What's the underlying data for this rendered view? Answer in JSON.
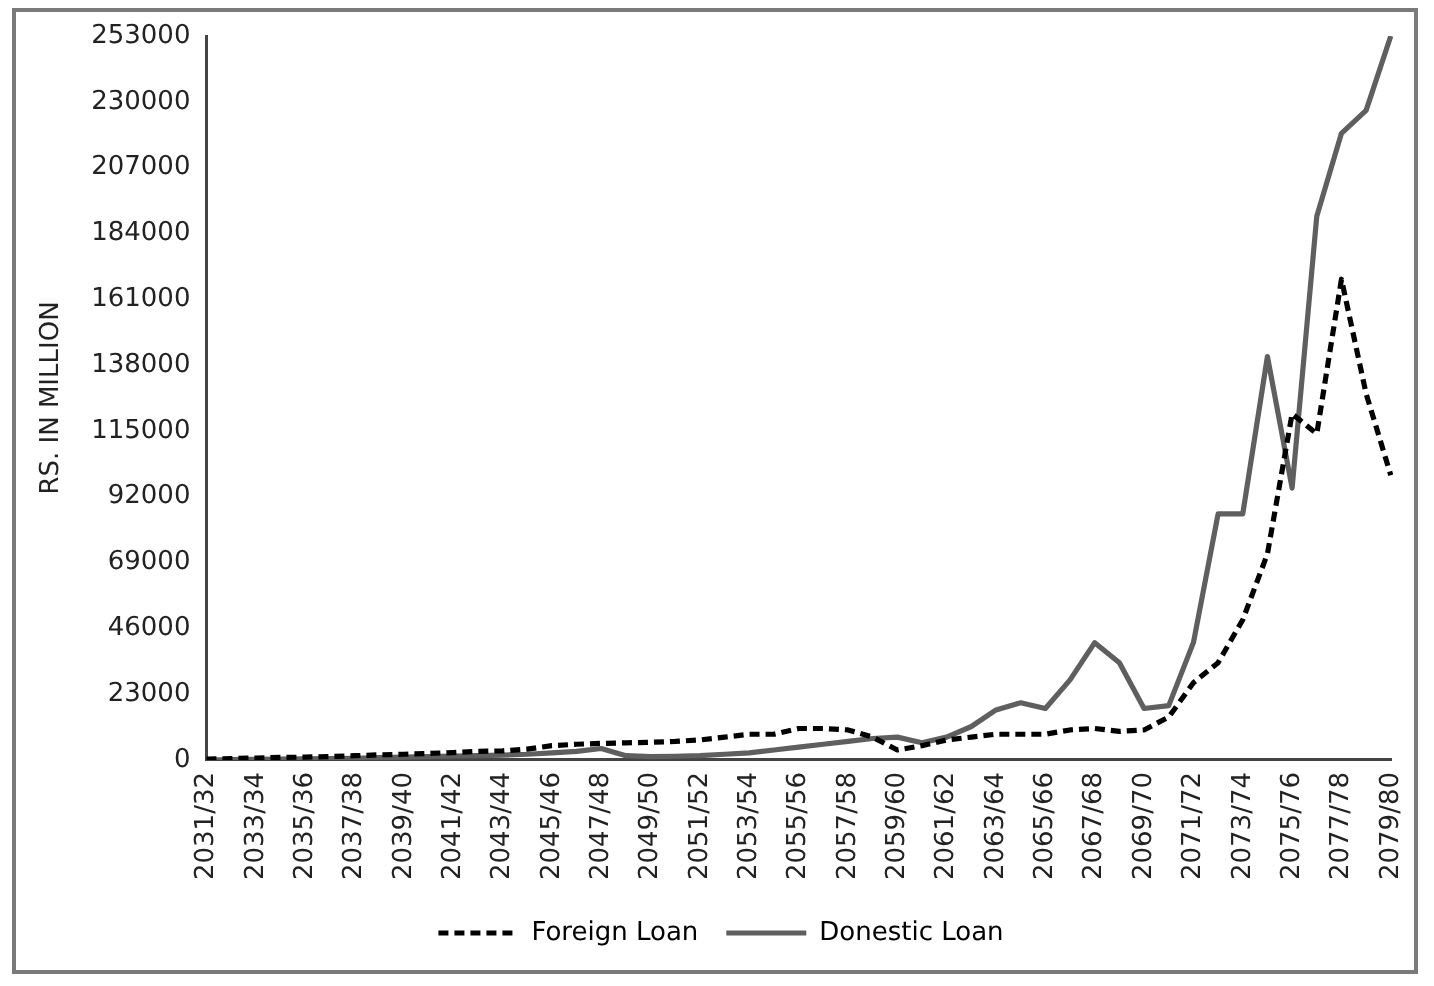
{
  "chart_data": {
    "type": "line",
    "ylabel": "RS. IN MILLION",
    "categories": [
      "2031/32",
      null,
      "2033/34",
      null,
      "2035/36",
      null,
      "2037/38",
      null,
      "2039/40",
      null,
      "2041/42",
      null,
      "2043/44",
      null,
      "2045/46",
      null,
      "2047/48",
      null,
      "2049/50",
      null,
      "2051/52",
      null,
      "2053/54",
      null,
      "2055/56",
      null,
      "2057/58",
      null,
      "2059/60",
      null,
      "2061/62",
      null,
      "2063/64",
      null,
      "2065/66",
      null,
      "2067/68",
      null,
      "2069/70",
      null,
      "2071/72",
      null,
      "2073/74",
      null,
      "2075/76",
      null,
      "2077/78",
      null,
      "2079/80"
    ],
    "series": [
      {
        "name": "Foreign Loan",
        "color": "#000000",
        "line_style": "dashed",
        "values": [
          300,
          500,
          700,
          900,
          1000,
          1200,
          1500,
          1800,
          2000,
          2300,
          2600,
          3000,
          3200,
          3800,
          5000,
          5500,
          5800,
          6000,
          6200,
          6500,
          7000,
          8000,
          9000,
          9000,
          11000,
          11000,
          10500,
          8000,
          3500,
          5000,
          7000,
          8000,
          9000,
          9000,
          9000,
          10500,
          11000,
          10000,
          10500,
          15000,
          27000,
          34000,
          49000,
          72000,
          121000,
          114000,
          168000,
          128000,
          99500
        ]
      },
      {
        "name": "Donestic Loan",
        "color": "#5f5f5f",
        "line_style": "solid",
        "values": [
          0,
          100,
          200,
          300,
          400,
          500,
          600,
          800,
          1000,
          1200,
          1400,
          1500,
          1700,
          2000,
          2500,
          3000,
          4000,
          1500,
          1200,
          1300,
          1500,
          2000,
          2500,
          3500,
          4500,
          5500,
          6500,
          7500,
          8000,
          6000,
          8000,
          11700,
          17500,
          20000,
          18000,
          28000,
          41000,
          34000,
          18000,
          19000,
          41000,
          86000,
          86000,
          141000,
          95000,
          190000,
          219000,
          227000,
          253000
        ]
      }
    ],
    "ylim": [
      0,
      253000
    ],
    "yticks": [
      0,
      23000,
      46000,
      69000,
      92000,
      115000,
      138000,
      161000,
      184000,
      207000,
      230000,
      253000
    ],
    "grid": false,
    "legend": "bottom",
    "marker": "none"
  }
}
